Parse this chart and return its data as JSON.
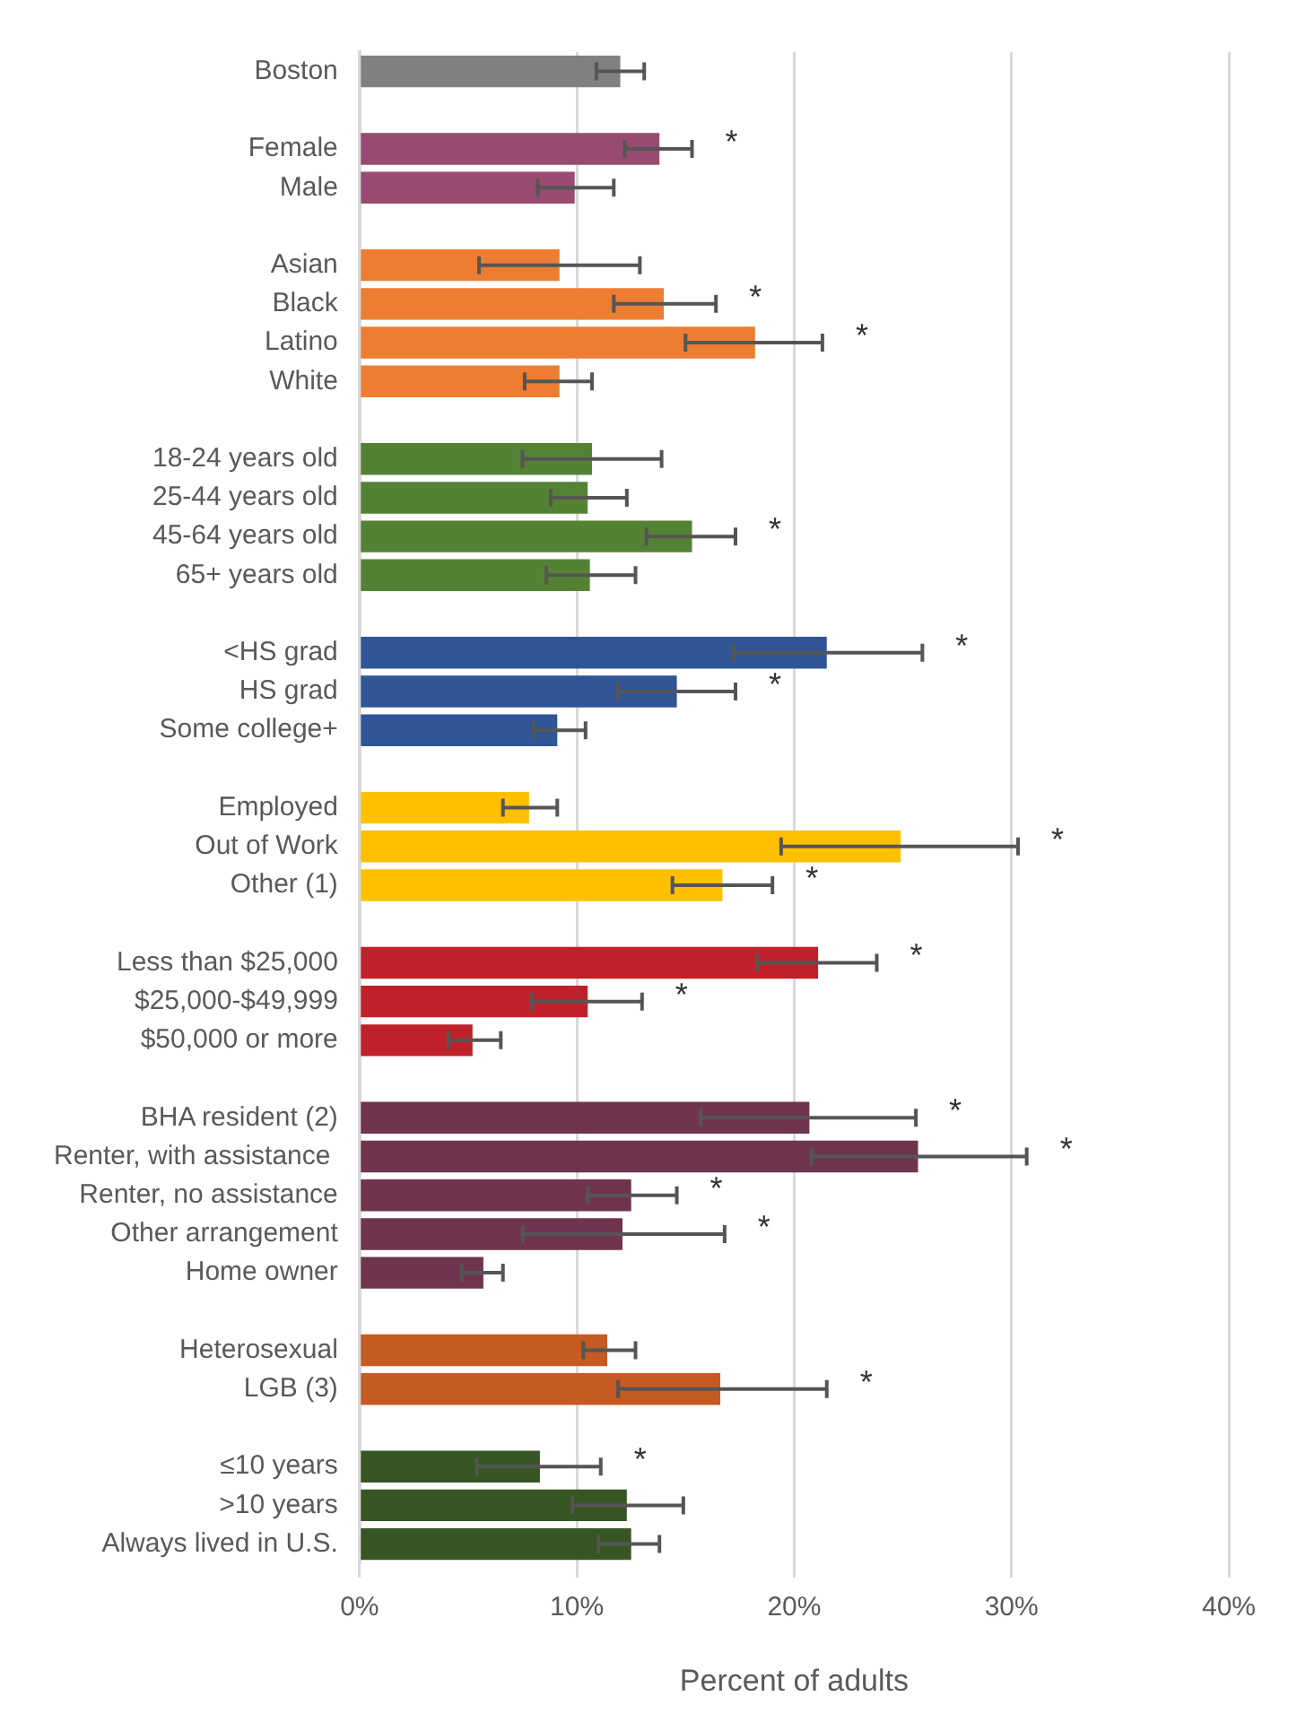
{
  "chart_data": {
    "type": "bar",
    "orientation": "horizontal",
    "xlabel": "Percent of adults",
    "categories": [
      "Boston",
      null,
      "Female",
      "Male",
      null,
      "Asian",
      "Black",
      "Latino",
      "White",
      null,
      "18-24 years old",
      "25-44 years old",
      "45-64 years old",
      "65+ years old",
      null,
      "<HS grad",
      "HS grad",
      "Some college+",
      null,
      "Employed",
      "Out of Work",
      "Other (1)",
      null,
      "Less than $25,000",
      "$25,000-$49,999",
      "$50,000 or more",
      null,
      "BHA resident (2)",
      "Renter, with assistance ",
      "Renter, no assistance",
      "Other arrangement",
      "Home owner",
      null,
      "Heterosexual",
      "LGB (3)",
      null,
      "≤10 years",
      ">10 years",
      "Always lived in U.S."
    ],
    "values": [
      12.0,
      null,
      13.8,
      9.9,
      null,
      9.2,
      14.0,
      18.2,
      9.2,
      null,
      10.7,
      10.5,
      15.3,
      10.6,
      null,
      21.5,
      14.6,
      9.1,
      null,
      7.8,
      24.9,
      16.7,
      null,
      21.1,
      10.5,
      5.2,
      null,
      20.7,
      25.7,
      12.5,
      12.1,
      5.7,
      null,
      11.4,
      16.6,
      null,
      8.3,
      12.3,
      12.5
    ],
    "errors": [
      [
        10.9,
        13.1
      ],
      null,
      [
        12.2,
        15.3
      ],
      [
        8.2,
        11.7
      ],
      null,
      [
        5.5,
        12.9
      ],
      [
        11.7,
        16.4
      ],
      [
        15.0,
        21.3
      ],
      [
        7.6,
        10.7
      ],
      null,
      [
        7.5,
        13.9
      ],
      [
        8.8,
        12.3
      ],
      [
        13.2,
        17.3
      ],
      [
        8.6,
        12.7
      ],
      null,
      [
        17.2,
        25.9
      ],
      [
        11.9,
        17.3
      ],
      [
        8.0,
        10.4
      ],
      null,
      [
        6.6,
        9.1
      ],
      [
        19.4,
        30.3
      ],
      [
        14.4,
        19.0
      ],
      null,
      [
        18.3,
        23.8
      ],
      [
        7.9,
        13.0
      ],
      [
        4.1,
        6.5
      ],
      null,
      [
        15.7,
        25.6
      ],
      [
        20.8,
        30.7
      ],
      [
        10.5,
        14.6
      ],
      [
        7.5,
        16.8
      ],
      [
        4.7,
        6.6
      ],
      null,
      [
        10.3,
        12.7
      ],
      [
        11.9,
        21.5
      ],
      null,
      [
        5.4,
        11.1
      ],
      [
        9.8,
        14.9
      ],
      [
        11.0,
        13.8
      ]
    ],
    "colors": [
      "#808080",
      null,
      "#984a72",
      "#984a72",
      null,
      "#ed7d31",
      "#ed7d31",
      "#ed7d31",
      "#ed7d31",
      null,
      "#548235",
      "#548235",
      "#548235",
      "#548235",
      null,
      "#2f5597",
      "#2f5597",
      "#2f5597",
      null,
      "#ffc000",
      "#ffc000",
      "#ffc000",
      null,
      "#c0202a",
      "#c0202a",
      "#c0202a",
      null,
      "#70344f",
      "#70344f",
      "#70344f",
      "#70344f",
      "#70344f",
      null,
      "#c55a22",
      "#c55a22",
      null,
      "#375623",
      "#375623",
      "#375623"
    ],
    "xlim": [
      0,
      40
    ],
    "xticks": [
      {
        "value": 0,
        "label": "0%"
      },
      {
        "value": 10,
        "label": "10%"
      },
      {
        "value": 20,
        "label": "20%"
      },
      {
        "value": 30,
        "label": "30%"
      },
      {
        "value": 40,
        "label": "40%"
      }
    ],
    "grid": "x",
    "legend": false,
    "annotations": [
      {
        "text": "*",
        "x": 15.3,
        "y": "Female"
      },
      {
        "text": "*",
        "x": 16.4,
        "y": "Black"
      },
      {
        "text": "*",
        "x": 21.3,
        "y": "Latino"
      },
      {
        "text": "*",
        "x": 17.3,
        "y": "45-64 years old"
      },
      {
        "text": "*",
        "x": 25.9,
        "y": "<HS grad"
      },
      {
        "text": "*",
        "x": 17.3,
        "y": "HS grad"
      },
      {
        "text": "*",
        "x": 30.3,
        "y": "Out of Work"
      },
      {
        "text": "*",
        "x": 19.0,
        "y": "Other (1)"
      },
      {
        "text": "*",
        "x": 23.8,
        "y": "Less than $25,000"
      },
      {
        "text": "*",
        "x": 13.0,
        "y": "$25,000-$49,999"
      },
      {
        "text": "*",
        "x": 25.6,
        "y": "BHA resident (2)"
      },
      {
        "text": "*",
        "x": 30.7,
        "y": "Renter, with assistance "
      },
      {
        "text": "*",
        "x": 14.6,
        "y": "Renter, no assistance"
      },
      {
        "text": "*",
        "x": 16.8,
        "y": "Other arrangement"
      },
      {
        "text": "*",
        "x": 21.5,
        "y": "LGB (3)"
      },
      {
        "text": "*",
        "x": 11.1,
        "y": "≤10 years"
      }
    ]
  }
}
